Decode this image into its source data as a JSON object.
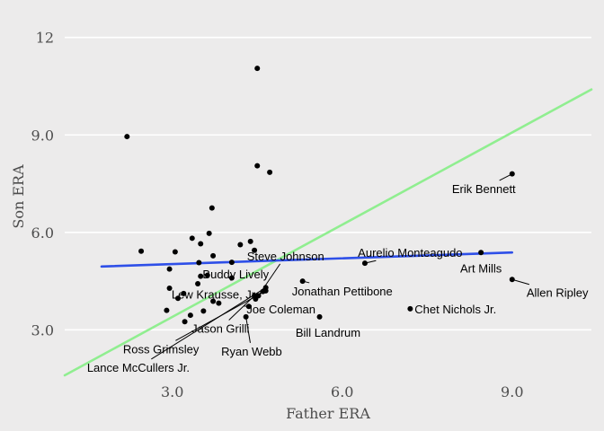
{
  "chart_data": {
    "type": "scatter",
    "title": "",
    "xlabel": "Father ERA",
    "ylabel": "Son ERA",
    "xlim": [
      1.1,
      10.4
    ],
    "ylim": [
      1.6,
      12.6
    ],
    "x_ticks": [
      {
        "value": 3.0,
        "label": "3.0"
      },
      {
        "value": 6.0,
        "label": "6.0"
      },
      {
        "value": 9.0,
        "label": "9.0"
      }
    ],
    "y_ticks": [
      {
        "value": 3.0,
        "label": "3.0"
      },
      {
        "value": 6.0,
        "label": "6.0"
      },
      {
        "value": 9.0,
        "label": "9.0"
      },
      {
        "value": 12.0,
        "label": "12"
      }
    ],
    "grid": "horizontal",
    "points": [
      {
        "x": 2.2,
        "y": 8.95
      },
      {
        "x": 4.5,
        "y": 11.05
      },
      {
        "x": 4.5,
        "y": 8.05
      },
      {
        "x": 4.72,
        "y": 7.85
      },
      {
        "x": 3.7,
        "y": 6.75
      },
      {
        "x": 3.65,
        "y": 5.97
      },
      {
        "x": 3.35,
        "y": 5.82
      },
      {
        "x": 4.38,
        "y": 5.72
      },
      {
        "x": 4.2,
        "y": 5.62
      },
      {
        "x": 3.5,
        "y": 5.65
      },
      {
        "x": 4.45,
        "y": 5.45
      },
      {
        "x": 2.45,
        "y": 5.42
      },
      {
        "x": 3.05,
        "y": 5.4
      },
      {
        "x": 3.72,
        "y": 5.28
      },
      {
        "x": 4.05,
        "y": 5.08
      },
      {
        "x": 3.47,
        "y": 5.07
      },
      {
        "x": 2.95,
        "y": 4.87
      },
      {
        "x": 3.62,
        "y": 4.68
      },
      {
        "x": 3.5,
        "y": 4.65
      },
      {
        "x": 3.45,
        "y": 4.42
      },
      {
        "x": 2.95,
        "y": 4.28
      },
      {
        "x": 3.2,
        "y": 4.12
      },
      {
        "x": 3.1,
        "y": 3.97
      },
      {
        "x": 3.72,
        "y": 3.88
      },
      {
        "x": 3.82,
        "y": 3.82
      },
      {
        "x": 2.9,
        "y": 3.6
      },
      {
        "x": 3.32,
        "y": 3.45
      },
      {
        "x": 3.55,
        "y": 3.58
      },
      {
        "x": 3.22,
        "y": 3.25
      },
      {
        "x": 4.05,
        "y": 4.6,
        "label": "Buddy Lively",
        "lx": 4.12,
        "ly": 4.72
      },
      {
        "x": 4.6,
        "y": 4.18,
        "label": "Lew Krausse, Jr.",
        "lx": 3.75,
        "ly": 4.1
      },
      {
        "x": 4.52,
        "y": 4.05,
        "label": "Steve Johnson",
        "lx": 5.0,
        "ly": 5.28
      },
      {
        "x": 4.47,
        "y": 3.95
      },
      {
        "x": 5.3,
        "y": 4.5,
        "label": "Jonathan Pettibone",
        "lx": 6.0,
        "ly": 4.2
      },
      {
        "x": 4.35,
        "y": 3.72,
        "label": "Joe Coleman",
        "lx": 4.92,
        "ly": 3.65
      },
      {
        "x": 4.3,
        "y": 3.4,
        "label": "Ryan Webb",
        "lx": 4.4,
        "ly": 2.35
      },
      {
        "x": 5.6,
        "y": 3.4,
        "label": "Bill Landrum",
        "lx": 5.75,
        "ly": 2.92
      },
      {
        "x": 6.4,
        "y": 5.05,
        "label": "Aurelio Monteagudo",
        "lx": 7.2,
        "ly": 5.38
      },
      {
        "x": 8.45,
        "y": 5.38,
        "label": "Art Mills",
        "lx": 8.45,
        "ly": 4.9
      },
      {
        "x": 9.0,
        "y": 4.55,
        "label": "Allen Ripley",
        "lx": 9.8,
        "ly": 4.15
      },
      {
        "x": 9.0,
        "y": 7.8,
        "label": "Erik Bennett",
        "lx": 8.5,
        "ly": 7.35
      },
      {
        "x": 7.2,
        "y": 3.65,
        "label": "Chet Nichols Jr.",
        "lx": 8.0,
        "ly": 3.65
      },
      {
        "x": 4.45,
        "y": 4.05,
        "label": "Jason Grilli",
        "lx": 3.85,
        "ly": 3.05
      },
      {
        "x": 4.65,
        "y": 4.2,
        "label": "Ross Grimsley",
        "lx": 2.8,
        "ly": 2.42
      },
      {
        "x": 4.65,
        "y": 4.3,
        "label": "Lance McCullers Jr.",
        "lx": 2.4,
        "ly": 1.85
      }
    ],
    "lines": [
      {
        "name": "",
        "color": "#90ee90",
        "x": [
          1.1,
          10.4
        ],
        "y": [
          1.6,
          10.4
        ]
      },
      {
        "name": "",
        "color": "#2e4fe8",
        "x": [
          1.75,
          9.0
        ],
        "y": [
          4.95,
          5.38
        ]
      }
    ],
    "colors": {
      "background": "#ecebeb",
      "grid": "#ffffff",
      "points": "#000000"
    }
  }
}
